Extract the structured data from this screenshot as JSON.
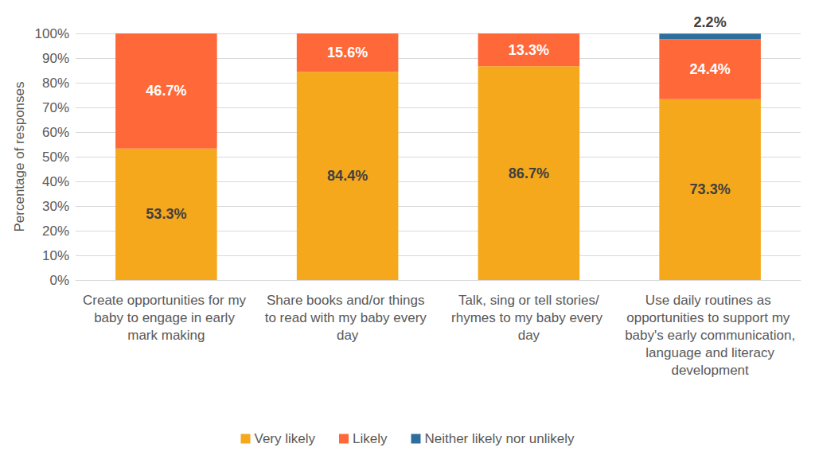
{
  "chart_data": {
    "type": "bar",
    "stacked": true,
    "data_labels": true,
    "grid": true,
    "legend": "bottom",
    "y_label": "Percentage of responses",
    "categories": [
      "Create opportunities for my baby to engage in early mark making",
      "Share books and/or things to read with my baby every day",
      "Talk, sing or tell stories/rhymes to my baby every day",
      "Use daily routines as opportunities to support my baby's early communication, language and literacy development"
    ],
    "series": [
      {
        "name": "Very likely",
        "color": "#F5A81C",
        "values": [
          53.3,
          84.4,
          86.7,
          73.3
        ],
        "value_labels": [
          "53.3%",
          "84.4%",
          "86.7%",
          "73.3%"
        ]
      },
      {
        "name": "Likely",
        "color": "#FF6838",
        "values": [
          46.7,
          15.6,
          13.3,
          24.4
        ],
        "value_labels": [
          "46.7%",
          "15.6%",
          "13.3%",
          "24.4%"
        ]
      },
      {
        "name": "Neither likely nor unlikely",
        "color": "#2E6E9E",
        "values": [
          null,
          null,
          null,
          2.2
        ],
        "value_labels": [
          null,
          null,
          null,
          "2.2%"
        ]
      }
    ],
    "ylim": [
      0,
      100
    ],
    "yticks": [
      {
        "value": 0,
        "label": "0%"
      },
      {
        "value": 10,
        "label": "10%"
      },
      {
        "value": 20,
        "label": "20%"
      },
      {
        "value": 30,
        "label": "30%"
      },
      {
        "value": 40,
        "label": "40%"
      },
      {
        "value": 50,
        "label": "50%"
      },
      {
        "value": 60,
        "label": "60%"
      },
      {
        "value": 70,
        "label": "70%"
      },
      {
        "value": 80,
        "label": "80%"
      },
      {
        "value": 90,
        "label": "90%"
      },
      {
        "value": 100,
        "label": "100%"
      }
    ]
  }
}
